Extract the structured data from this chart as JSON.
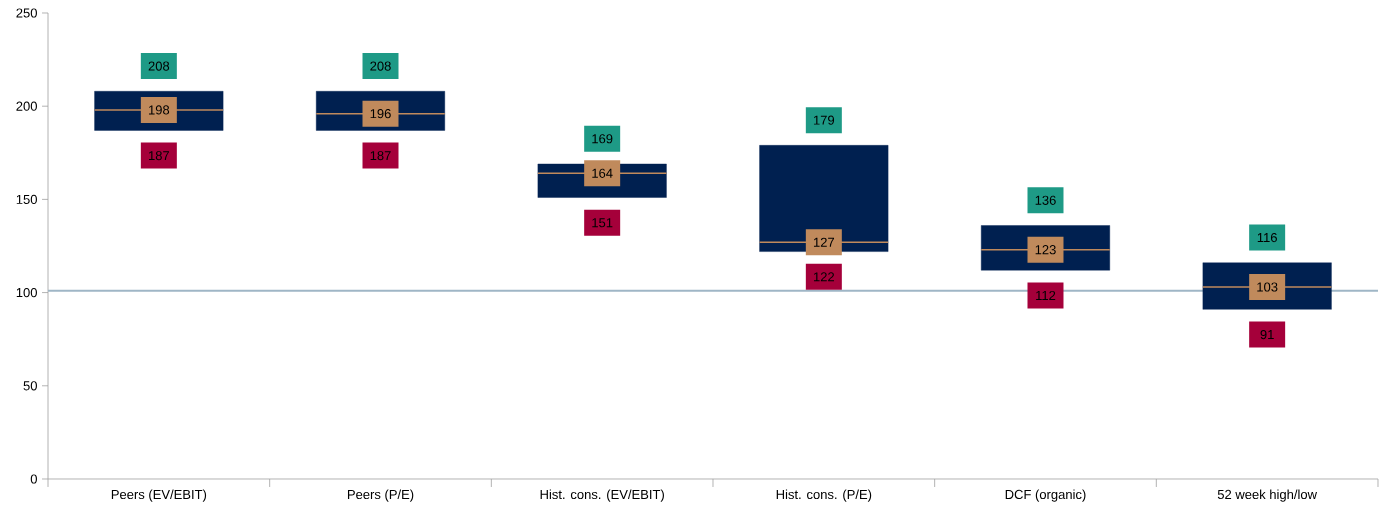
{
  "chart_data": {
    "type": "box",
    "categories": [
      "Peers (EV/EBIT)",
      "Peers (P/E)",
      "Hist. cons. (EV/EBIT)",
      "Hist. cons. (P/E)",
      "DCF (organic)",
      "52 week high/low"
    ],
    "boxes": [
      {
        "low": 187,
        "q1": 187,
        "median": 198,
        "q3": 208,
        "high": 208
      },
      {
        "low": 187,
        "q1": 187,
        "median": 196,
        "q3": 208,
        "high": 208
      },
      {
        "low": 151,
        "q1": 151,
        "median": 164,
        "q3": 169,
        "high": 169
      },
      {
        "low": 122,
        "q1": 122,
        "median": 127,
        "q3": 179,
        "high": 179
      },
      {
        "low": 112,
        "q1": 112,
        "median": 123,
        "q3": 136,
        "high": 136
      },
      {
        "low": 91,
        "q1": 91,
        "median": 103,
        "q3": 116,
        "high": 116
      }
    ],
    "color": "#002050",
    "annotations": [
      {
        "text": "208",
        "x": "Peers (EV/EBIT)",
        "y": 208
      },
      {
        "text": "198",
        "x": "Peers (EV/EBIT)",
        "y": 198
      },
      {
        "text": "187",
        "x": "Peers (EV/EBIT)",
        "y": 187
      },
      {
        "text": "208",
        "x": "Peers (P/E)",
        "y": 208
      },
      {
        "text": "196",
        "x": "Peers (P/E)",
        "y": 196
      },
      {
        "text": "187",
        "x": "Peers (P/E)",
        "y": 187
      },
      {
        "text": "169",
        "x": "Hist. cons. (EV/EBIT)",
        "y": 169
      },
      {
        "text": "164",
        "x": "Hist. cons. (EV/EBIT)",
        "y": 164
      },
      {
        "text": "151",
        "x": "Hist. cons. (EV/EBIT)",
        "y": 151
      },
      {
        "text": "179",
        "x": "Hist. cons. (P/E)",
        "y": 179
      },
      {
        "text": "127",
        "x": "Hist. cons. (P/E)",
        "y": 127
      },
      {
        "text": "122",
        "x": "Hist. cons. (P/E)",
        "y": 122
      },
      {
        "text": "136",
        "x": "DCF (organic)",
        "y": 136
      },
      {
        "text": "123",
        "x": "DCF (organic)",
        "y": 123
      },
      {
        "text": "112",
        "x": "DCF (organic)",
        "y": 112
      },
      {
        "text": "116",
        "x": "52 week high/low",
        "y": 116
      },
      {
        "text": "103",
        "x": "52 week high/low",
        "y": 103
      },
      {
        "text": "91",
        "x": "52 week high/low",
        "y": 91
      }
    ],
    "ylim": [
      0,
      250
    ],
    "yticks": [
      0,
      50,
      100,
      150,
      200,
      250
    ],
    "grid": false,
    "ref_lines": [
      {
        "axis": "y",
        "value": 101,
        "color": "#9fb6c6"
      }
    ]
  }
}
